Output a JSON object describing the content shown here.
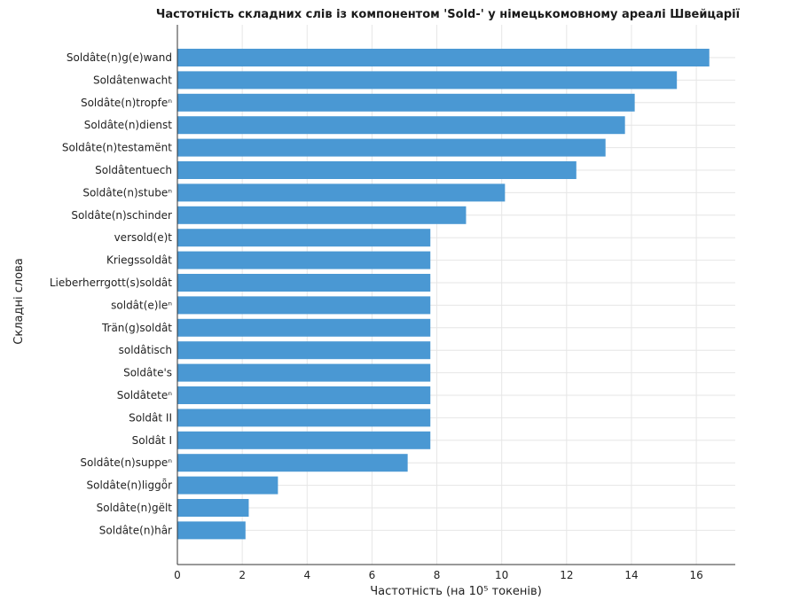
{
  "chart_data": {
    "type": "bar",
    "orientation": "horizontal",
    "title": "Частотність складних слів із компонентом 'Sold-' у німецькомовному ареалі Швейцарії",
    "xlabel": "Частотність (на 10⁵ токенів)",
    "ylabel": "Складні слова",
    "xlim": [
      0,
      17.2
    ],
    "xticks": [
      0,
      2,
      4,
      6,
      8,
      10,
      12,
      14,
      16
    ],
    "grid": true,
    "bar_color": "#4a98d3",
    "categories": [
      "Soldâte(n)g(e)wand",
      "Soldâtenwacht",
      "Soldâte(n)tropfeⁿ",
      "Soldâte(n)dienst",
      "Soldâte(n)testamënt",
      "Soldâtentuech",
      "Soldâte(n)stubeⁿ",
      "Soldâte(n)schinder",
      "versold(e)t",
      "Kriegssoldât",
      "Lieberherrgott(s)soldât",
      "soldât(e)leⁿ",
      "Trän(g)soldât",
      "soldâtisch",
      "Soldâte's",
      "Soldâteteⁿ",
      "Soldât II",
      "Soldât I",
      "Soldâte(n)suppeⁿ",
      "Soldâte(n)liggȫr",
      "Soldâte(n)gëlt",
      "Soldâte(n)hâr"
    ],
    "values": [
      16.4,
      15.4,
      14.1,
      13.8,
      13.2,
      12.3,
      10.1,
      8.9,
      7.8,
      7.8,
      7.8,
      7.8,
      7.8,
      7.8,
      7.8,
      7.8,
      7.8,
      7.8,
      7.1,
      3.1,
      2.2,
      2.1
    ]
  }
}
